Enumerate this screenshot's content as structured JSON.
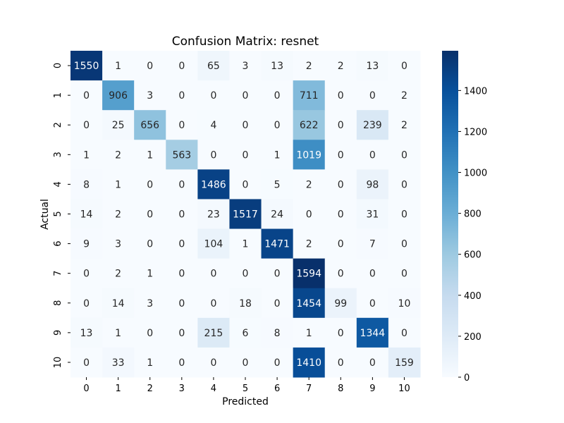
{
  "chart_data": {
    "type": "heatmap",
    "title": "Confusion Matrix: resnet",
    "xlabel": "Predicted",
    "ylabel": "Actual",
    "x_categories": [
      "0",
      "1",
      "2",
      "3",
      "4",
      "5",
      "6",
      "7",
      "8",
      "9",
      "10"
    ],
    "y_categories": [
      "0",
      "1",
      "2",
      "3",
      "4",
      "5",
      "6",
      "7",
      "8",
      "9",
      "10"
    ],
    "matrix": [
      [
        1550,
        1,
        0,
        0,
        65,
        3,
        13,
        2,
        2,
        13,
        0
      ],
      [
        0,
        906,
        3,
        0,
        0,
        0,
        0,
        711,
        0,
        0,
        2
      ],
      [
        0,
        25,
        656,
        0,
        4,
        0,
        0,
        622,
        0,
        239,
        2
      ],
      [
        1,
        2,
        1,
        563,
        0,
        0,
        1,
        1019,
        0,
        0,
        0
      ],
      [
        8,
        1,
        0,
        0,
        1486,
        0,
        5,
        2,
        0,
        98,
        0
      ],
      [
        14,
        2,
        0,
        0,
        23,
        1517,
        24,
        0,
        0,
        31,
        0
      ],
      [
        9,
        3,
        0,
        0,
        104,
        1,
        1471,
        2,
        0,
        7,
        0
      ],
      [
        0,
        2,
        1,
        0,
        0,
        0,
        0,
        1594,
        0,
        0,
        0
      ],
      [
        0,
        14,
        3,
        0,
        0,
        18,
        0,
        1454,
        99,
        0,
        10
      ],
      [
        13,
        1,
        0,
        0,
        215,
        6,
        8,
        1,
        0,
        1344,
        0
      ],
      [
        0,
        33,
        1,
        0,
        0,
        0,
        0,
        1410,
        0,
        0,
        159
      ]
    ],
    "colormap": "Blues",
    "value_range": [
      0,
      1594
    ],
    "colorbar_ticks": [
      0,
      200,
      400,
      600,
      800,
      1000,
      1200,
      1400
    ],
    "colorbar_tick_labels": [
      "0",
      "200",
      "400",
      "600",
      "800",
      "1000",
      "1200",
      "1400"
    ],
    "grid": false,
    "colorbar_position": "right"
  }
}
